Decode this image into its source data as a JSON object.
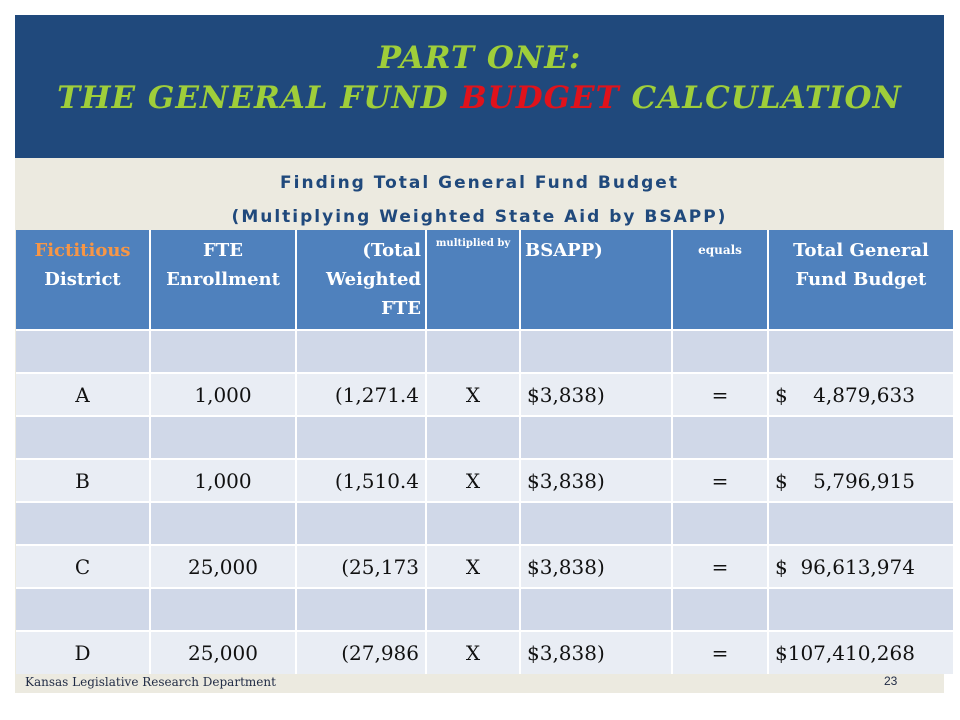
{
  "title": {
    "line1": "PART ONE:",
    "line2_prefix": "THE GENERAL FUND ",
    "line2_highlight": "BUDGET",
    "line2_suffix": " CALCULATION"
  },
  "subtitle": {
    "line1": "Finding Total General Fund Budget",
    "line2": "(Multiplying Weighted State Aid by BSAPP)"
  },
  "table": {
    "headers": {
      "district_a": "Fictitious",
      "district_b": "District",
      "fte": "FTE Enrollment",
      "weighted": "(Total Weighted FTE",
      "multiplied": "multiplied by",
      "bsapp": "BSAPP)",
      "equals": "equals",
      "total": "Total General Fund Budget"
    },
    "rows": [
      {
        "district": "A",
        "fte": "1,000",
        "weighted": "(1,271.4",
        "op": "X",
        "bsapp": "$3,838)",
        "eq": "=",
        "total": "$    4,879,633"
      },
      {
        "district": "B",
        "fte": "1,000",
        "weighted": "(1,510.4",
        "op": "X",
        "bsapp": "$3,838)",
        "eq": "=",
        "total": "$    5,796,915"
      },
      {
        "district": "C",
        "fte": "25,000",
        "weighted": "(25,173",
        "op": "X",
        "bsapp": "$3,838)",
        "eq": "=",
        "total": "$  96,613,974"
      },
      {
        "district": "D",
        "fte": "25,000",
        "weighted": "(27,986",
        "op": "X",
        "bsapp": "$3,838)",
        "eq": "=",
        "total": "$107,410,268"
      }
    ]
  },
  "footer": {
    "source": "Kansas Legislative Research Department",
    "page": "23"
  }
}
